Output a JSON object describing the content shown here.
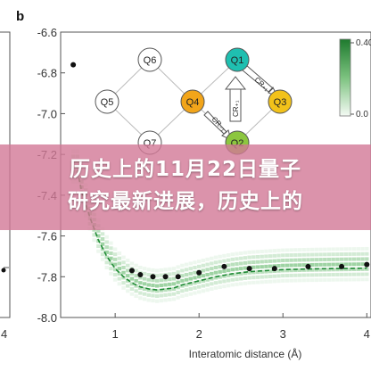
{
  "figure": {
    "panel_label": "b",
    "left_partial_ticks": [
      "4"
    ]
  },
  "overlay": {
    "title_line1": "历史上的11月22日量子",
    "title_line2": "研究最新进展，历史上的"
  },
  "inset": {
    "nodes": [
      "Q6",
      "Q1",
      "Q5",
      "Q4",
      "Q3",
      "Q7",
      "Q2"
    ],
    "arrow_labels": [
      "CR₊₁",
      "CR₊₁",
      "CR₋₁"
    ],
    "colors": {
      "Q1": "#1fbfb0",
      "Q4": "#f2a51a",
      "Q3": "#f2c21a",
      "Q2": "#8cc63f",
      "empty": "#ffffff"
    }
  },
  "colorbar": {
    "tick_labels": [
      "0.40",
      "0.0"
    ],
    "color_top": "#1e7a2e",
    "color_bottom": "#f4faf4"
  },
  "chart_data": {
    "type": "line",
    "xlabel": "Interatomic distance (Å)",
    "ylabel": "",
    "x_ticks": [
      "1",
      "2",
      "3",
      "4"
    ],
    "y_ticks": [
      "-6.6",
      "-6.8",
      "-7.0",
      "-7.2",
      "-7.4",
      "-7.6",
      "-7.8",
      "-8.0"
    ],
    "xlim": [
      0.35,
      4.05
    ],
    "ylim": [
      -8.0,
      -6.6
    ],
    "series": [
      {
        "style": "dashed",
        "x": [
          0.55,
          0.6,
          0.7,
          0.8,
          0.9,
          1.0,
          1.1,
          1.2,
          1.3,
          1.4,
          1.5,
          1.6,
          1.7,
          1.8,
          2.0,
          2.2,
          2.4,
          2.6,
          2.8,
          3.0,
          3.3,
          3.6,
          4.0
        ],
        "values": [
          -7.28,
          -7.38,
          -7.51,
          -7.62,
          -7.7,
          -7.76,
          -7.8,
          -7.83,
          -7.85,
          -7.86,
          -7.865,
          -7.86,
          -7.855,
          -7.84,
          -7.82,
          -7.8,
          -7.785,
          -7.775,
          -7.77,
          -7.765,
          -7.762,
          -7.76,
          -7.758
        ]
      },
      {
        "style": "points",
        "x": [
          0.5,
          1.2,
          1.3,
          1.45,
          1.6,
          1.75,
          2.0,
          2.3,
          2.6,
          2.9,
          3.3,
          3.7,
          4.0
        ],
        "values": [
          -6.76,
          -7.77,
          -7.79,
          -7.8,
          -7.8,
          -7.8,
          -7.78,
          -7.75,
          -7.76,
          -7.76,
          -7.75,
          -7.75,
          -7.74
        ]
      }
    ]
  }
}
